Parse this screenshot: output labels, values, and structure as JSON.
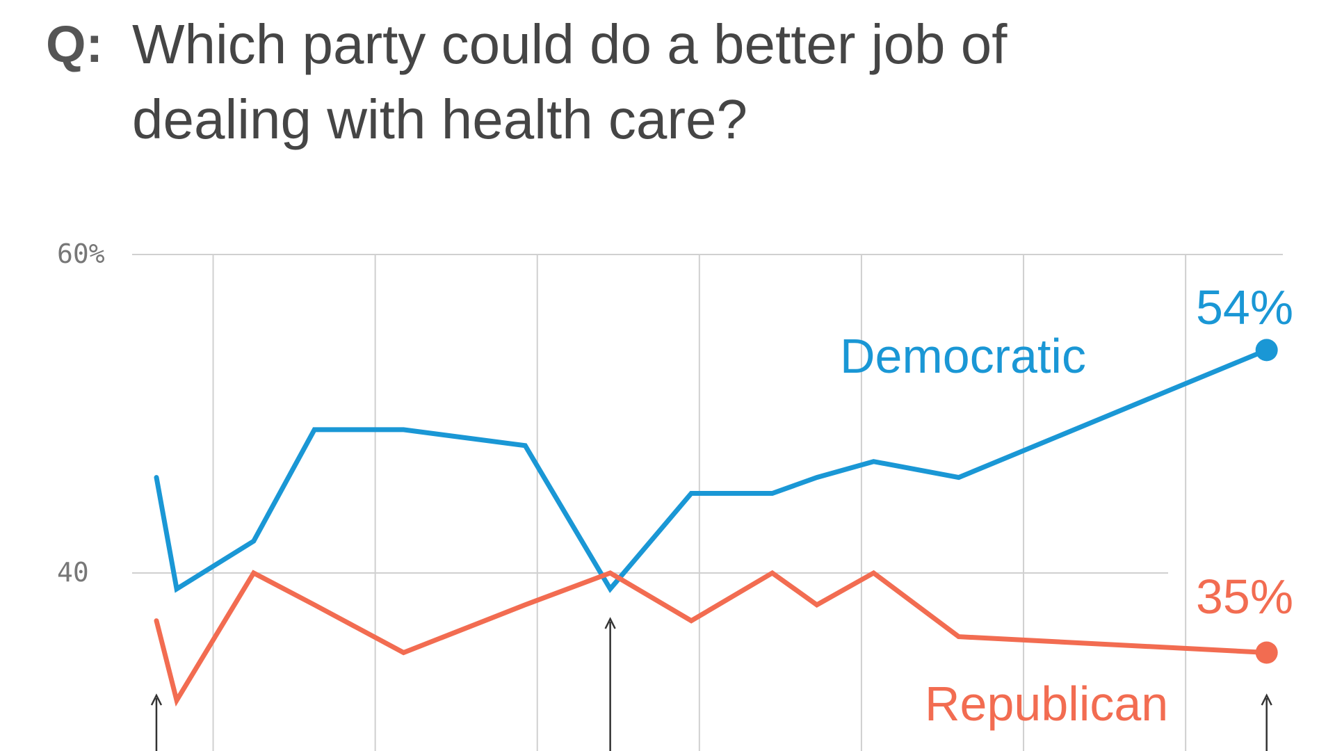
{
  "question": {
    "prefix": "Q:",
    "text": "Which party could do a better job of dealing with health care?"
  },
  "colors": {
    "democratic": "#1a97d5",
    "republican": "#f26c51",
    "grid": "#d0d0d0",
    "arrow": "#333333"
  },
  "chart_data": {
    "type": "line",
    "ylim": [
      31,
      64
    ],
    "y_ticks": [
      {
        "value": 60,
        "label": "60%"
      },
      {
        "value": 40,
        "label": "40"
      }
    ],
    "x_range": [
      0,
      14.2
    ],
    "x_gridlines": [
      1,
      3,
      5,
      7,
      9,
      11,
      13
    ],
    "series": [
      {
        "name": "Democratic",
        "color": "#1a97d5",
        "end_label": "54%",
        "points": [
          {
            "x": 0.3,
            "y": 46
          },
          {
            "x": 0.55,
            "y": 39
          },
          {
            "x": 1.5,
            "y": 42
          },
          {
            "x": 2.25,
            "y": 49
          },
          {
            "x": 3.35,
            "y": 49
          },
          {
            "x": 4.85,
            "y": 48
          },
          {
            "x": 5.9,
            "y": 39
          },
          {
            "x": 6.9,
            "y": 45
          },
          {
            "x": 7.9,
            "y": 45
          },
          {
            "x": 8.45,
            "y": 46
          },
          {
            "x": 9.15,
            "y": 47
          },
          {
            "x": 10.2,
            "y": 46
          },
          {
            "x": 14.0,
            "y": 54
          }
        ]
      },
      {
        "name": "Republican",
        "color": "#f26c51",
        "end_label": "35%",
        "points": [
          {
            "x": 0.3,
            "y": 37
          },
          {
            "x": 0.55,
            "y": 32
          },
          {
            "x": 1.5,
            "y": 40
          },
          {
            "x": 2.25,
            "y": 38
          },
          {
            "x": 3.35,
            "y": 35
          },
          {
            "x": 4.85,
            "y": 38
          },
          {
            "x": 5.9,
            "y": 40
          },
          {
            "x": 6.9,
            "y": 37
          },
          {
            "x": 7.9,
            "y": 40
          },
          {
            "x": 8.45,
            "y": 38
          },
          {
            "x": 9.15,
            "y": 40
          },
          {
            "x": 10.2,
            "y": 36
          },
          {
            "x": 14.0,
            "y": 35
          }
        ]
      }
    ],
    "annotation_arrows_x": [
      0.3,
      5.9,
      14.0
    ]
  }
}
